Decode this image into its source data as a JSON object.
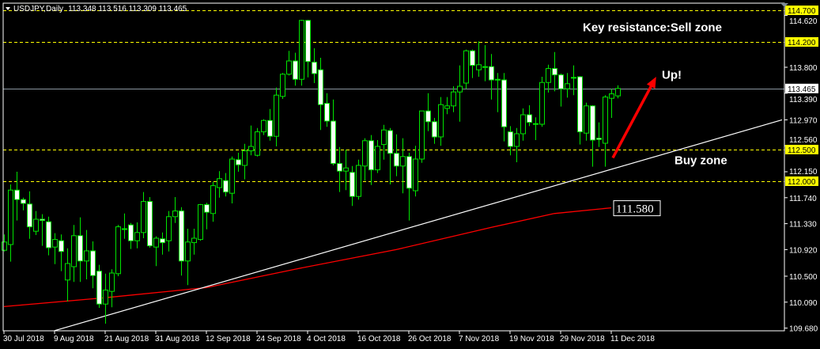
{
  "header": {
    "symbol_label": "USDJPY,Daily",
    "ohlc_label": "113.348 113.516 113.309 113.465"
  },
  "chart_data": {
    "type": "candlestick",
    "symbol": "USDJPY",
    "timeframe": "Daily",
    "ylim": [
      109.68,
      114.7
    ],
    "y_ticks": [
      "114.620",
      "113.800",
      "113.390",
      "112.970",
      "112.560",
      "112.150",
      "111.740",
      "111.330",
      "110.920",
      "110.500",
      "110.090",
      "109.680"
    ],
    "x_ticks": [
      {
        "index": 0,
        "label": "30 Jul 2018"
      },
      {
        "index": 8,
        "label": "9 Aug 2018"
      },
      {
        "index": 16,
        "label": "21 Aug 2018"
      },
      {
        "index": 24,
        "label": "31 Aug 2018"
      },
      {
        "index": 32,
        "label": "12 Sep 2018"
      },
      {
        "index": 40,
        "label": "24 Sep 2018"
      },
      {
        "index": 48,
        "label": "4 Oct 2018"
      },
      {
        "index": 56,
        "label": "16 Oct 2018"
      },
      {
        "index": 64,
        "label": "26 Oct 2018"
      },
      {
        "index": 72,
        "label": "7 Nov 2018"
      },
      {
        "index": 80,
        "label": "19 Nov 2018"
      },
      {
        "index": 88,
        "label": "29 Nov 2018"
      },
      {
        "index": 96,
        "label": "11 Dec 2018"
      }
    ],
    "ohlc": [
      [
        110.91,
        111.16,
        110.89,
        111.04
      ],
      [
        111.0,
        111.95,
        110.73,
        111.86
      ],
      [
        111.86,
        112.15,
        111.38,
        111.71
      ],
      [
        111.71,
        111.74,
        111.54,
        111.65
      ],
      [
        111.64,
        111.84,
        111.09,
        111.28
      ],
      [
        111.21,
        111.53,
        111.15,
        111.4
      ],
      [
        111.4,
        111.48,
        110.98,
        111.38
      ],
      [
        111.36,
        111.44,
        110.83,
        110.95
      ],
      [
        110.96,
        111.18,
        110.69,
        111.08
      ],
      [
        111.06,
        111.16,
        110.58,
        110.89
      ],
      [
        110.44,
        110.94,
        110.1,
        110.7
      ],
      [
        110.65,
        111.31,
        110.41,
        111.14
      ],
      [
        111.14,
        111.43,
        110.41,
        110.74
      ],
      [
        110.74,
        111.23,
        110.45,
        110.9
      ],
      [
        110.9,
        111.05,
        110.31,
        110.51
      ],
      [
        110.58,
        110.68,
        110.0,
        110.06
      ],
      [
        110.06,
        110.54,
        109.75,
        110.28
      ],
      [
        110.26,
        110.61,
        110.01,
        110.55
      ],
      [
        110.54,
        111.31,
        110.5,
        111.28
      ],
      [
        111.25,
        111.49,
        111.09,
        111.25
      ],
      [
        111.31,
        111.34,
        110.93,
        111.06
      ],
      [
        111.06,
        111.35,
        110.94,
        111.19
      ],
      [
        111.19,
        111.83,
        111.1,
        111.68
      ],
      [
        111.68,
        111.75,
        110.95,
        110.98
      ],
      [
        110.96,
        111.13,
        110.66,
        111.1
      ],
      [
        111.09,
        111.19,
        110.84,
        111.03
      ],
      [
        111.06,
        111.53,
        110.89,
        111.44
      ],
      [
        111.44,
        111.75,
        111.34,
        111.53
      ],
      [
        111.53,
        111.59,
        110.51,
        110.74
      ],
      [
        110.74,
        111.25,
        110.36,
        111.04
      ],
      [
        111.03,
        111.25,
        110.84,
        111.1
      ],
      [
        111.08,
        111.64,
        111.06,
        111.63
      ],
      [
        111.63,
        111.66,
        111.24,
        111.51
      ],
      [
        111.49,
        111.99,
        111.36,
        111.93
      ],
      [
        111.9,
        112.16,
        111.74,
        112.04
      ],
      [
        112.01,
        112.13,
        111.76,
        111.83
      ],
      [
        111.81,
        112.39,
        111.65,
        112.35
      ],
      [
        112.34,
        112.45,
        112.15,
        112.26
      ],
      [
        112.25,
        112.59,
        112.03,
        112.48
      ],
      [
        112.48,
        112.88,
        112.41,
        112.55
      ],
      [
        112.41,
        112.84,
        112.39,
        112.78
      ],
      [
        112.78,
        112.98,
        112.73,
        112.96
      ],
      [
        112.96,
        113.14,
        112.64,
        112.71
      ],
      [
        112.71,
        113.48,
        112.55,
        113.36
      ],
      [
        113.34,
        113.71,
        113.3,
        113.69
      ],
      [
        113.69,
        114.06,
        113.67,
        113.9
      ],
      [
        113.9,
        114.03,
        113.51,
        113.61
      ],
      [
        113.61,
        114.55,
        113.51,
        114.54
      ],
      [
        114.54,
        114.55,
        113.64,
        113.89
      ],
      [
        113.88,
        114.1,
        113.55,
        113.7
      ],
      [
        113.76,
        113.95,
        112.81,
        113.21
      ],
      [
        113.23,
        113.39,
        112.86,
        112.95
      ],
      [
        112.95,
        113.29,
        112.25,
        112.28
      ],
      [
        112.28,
        112.54,
        111.83,
        112.16
      ],
      [
        112.16,
        112.5,
        111.86,
        112.21
      ],
      [
        112.14,
        112.24,
        111.61,
        111.76
      ],
      [
        111.76,
        112.34,
        111.71,
        112.25
      ],
      [
        112.24,
        112.68,
        112.01,
        112.64
      ],
      [
        112.64,
        112.73,
        111.94,
        112.18
      ],
      [
        112.18,
        112.65,
        112.13,
        112.55
      ],
      [
        112.58,
        112.89,
        112.34,
        112.81
      ],
      [
        112.8,
        112.84,
        111.95,
        112.44
      ],
      [
        112.44,
        112.74,
        112.08,
        112.24
      ],
      [
        112.24,
        112.68,
        111.81,
        112.39
      ],
      [
        112.39,
        112.45,
        111.38,
        111.89
      ],
      [
        111.85,
        112.56,
        111.76,
        112.35
      ],
      [
        112.35,
        113.11,
        112.29,
        113.11
      ],
      [
        113.11,
        113.39,
        112.79,
        112.94
      ],
      [
        112.94,
        113.0,
        112.59,
        112.7
      ],
      [
        112.7,
        113.33,
        112.56,
        113.21
      ],
      [
        113.15,
        113.33,
        113.06,
        113.19
      ],
      [
        113.19,
        113.5,
        113.09,
        113.41
      ],
      [
        113.41,
        113.83,
        112.94,
        113.5
      ],
      [
        113.55,
        114.08,
        113.46,
        114.06
      ],
      [
        114.06,
        114.08,
        113.63,
        113.83
      ],
      [
        113.76,
        114.21,
        113.65,
        113.84
      ],
      [
        113.81,
        114.15,
        113.58,
        113.8
      ],
      [
        113.81,
        114.01,
        113.29,
        113.6
      ],
      [
        113.61,
        113.71,
        113.09,
        113.61
      ],
      [
        113.6,
        113.71,
        112.63,
        112.86
      ],
      [
        112.78,
        112.87,
        112.41,
        112.55
      ],
      [
        112.55,
        112.84,
        112.3,
        112.75
      ],
      [
        112.75,
        113.15,
        112.64,
        113.05
      ],
      [
        113.05,
        113.2,
        112.87,
        112.93
      ],
      [
        112.91,
        113.01,
        112.65,
        112.91
      ],
      [
        112.9,
        113.65,
        112.86,
        113.56
      ],
      [
        113.56,
        113.84,
        113.4,
        113.78
      ],
      [
        113.78,
        114.04,
        113.42,
        113.68
      ],
      [
        113.68,
        113.7,
        113.18,
        113.46
      ],
      [
        113.46,
        113.71,
        113.32,
        113.54
      ],
      [
        113.64,
        113.83,
        113.36,
        113.64
      ],
      [
        113.65,
        113.66,
        112.58,
        112.78
      ],
      [
        112.76,
        113.24,
        112.64,
        113.19
      ],
      [
        113.19,
        113.2,
        112.23,
        112.65
      ],
      [
        112.68,
        112.93,
        112.54,
        112.66
      ],
      [
        112.6,
        113.36,
        112.23,
        113.33
      ],
      [
        113.31,
        113.46,
        113.0,
        113.38
      ],
      [
        113.348,
        113.516,
        113.309,
        113.465
      ]
    ],
    "moving_average": {
      "color": "#ff0000",
      "points": [
        [
          0,
          110.02
        ],
        [
          16,
          110.16
        ],
        [
          32,
          110.32
        ],
        [
          46,
          110.61
        ],
        [
          62,
          110.92
        ],
        [
          77,
          111.27
        ],
        [
          87,
          111.49
        ],
        [
          96,
          111.58
        ]
      ],
      "last_value_label": "111.580"
    },
    "horizontal_levels": [
      {
        "price": 114.7,
        "label": "114.700"
      },
      {
        "price": 114.2,
        "label": "114.200"
      },
      {
        "price": 112.5,
        "label": "112.500"
      },
      {
        "price": 112.0,
        "label": "112.000"
      }
    ],
    "current_price": {
      "price": 113.465,
      "label": "113.465"
    },
    "trendline": [
      [
        8,
        109.64
      ],
      [
        123,
        112.97
      ]
    ],
    "arrow": {
      "from": [
        96.25,
        112.37
      ],
      "to": [
        103.1,
        113.65
      ],
      "color": "#ff0000"
    },
    "annotations": [
      {
        "text": "Key resistance:Sell zone",
        "at": [
          91.5,
          114.37
        ]
      },
      {
        "text": "Up!",
        "at": [
          104,
          113.62
        ]
      },
      {
        "text": "Buy zone",
        "at": [
          106,
          112.27
        ]
      }
    ],
    "colors": {
      "background": "#000000",
      "candle_outline": "#00e600",
      "bull_body": "#000000",
      "bear_body": "#ffffff",
      "level_line": "#ffff00",
      "level_label_bg": "#ffff00",
      "price_line": "#8a95a0",
      "trendline": "#ffffff"
    }
  }
}
